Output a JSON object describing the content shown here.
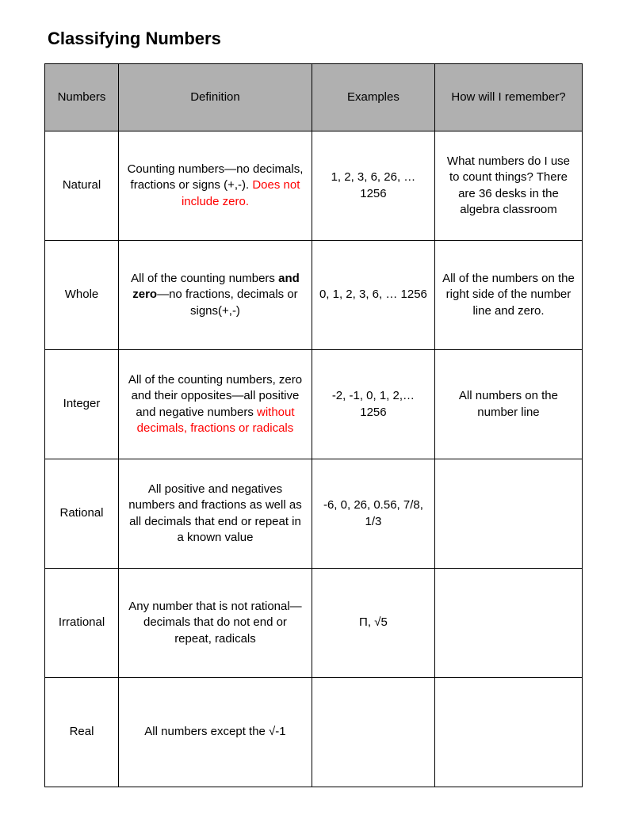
{
  "title": "Classifying Numbers",
  "columns": [
    "Numbers",
    "Definition",
    "Examples",
    "How will I remember?"
  ],
  "header_bg": "#b0b0b0",
  "red_color": "#ff0000",
  "rows": [
    {
      "name": "Natural",
      "def_pre": "Counting numbers—no decimals, fractions or signs (+,-).  ",
      "def_red": "Does not include zero.",
      "examples": "1, 2, 3, 6, 26, … 1256",
      "remember": "What numbers do I use to count things? There are 36 desks in the algebra classroom"
    },
    {
      "name": "Whole",
      "def_pre": "All of the counting numbers ",
      "def_bold": "and zero",
      "def_post": "—no fractions, decimals or signs(+,-)",
      "examples": "0, 1, 2, 3, 6, … 1256",
      "remember": "All of the numbers on the right side of the number line and zero."
    },
    {
      "name": "Integer",
      "def_pre": "All of the counting numbers, zero and their opposites—all positive and negative numbers ",
      "def_red": "without decimals, fractions or radicals",
      "examples": "-2, -1, 0, 1, 2,… 1256",
      "remember": "All numbers on the number line"
    },
    {
      "name": "Rational",
      "def_pre": "All positive and negatives numbers and fractions as well as all decimals that end or repeat in a known value",
      "examples": "-6, 0, 26, 0.56, 7/8, 1/3",
      "remember": ""
    },
    {
      "name": "Irrational",
      "def_pre": "Any number that is not rational—decimals that do not end or repeat, radicals",
      "examples": "Π, √5",
      "remember": ""
    },
    {
      "name": "Real",
      "def_pre": "All numbers except the √-1",
      "examples": "",
      "remember": ""
    }
  ]
}
